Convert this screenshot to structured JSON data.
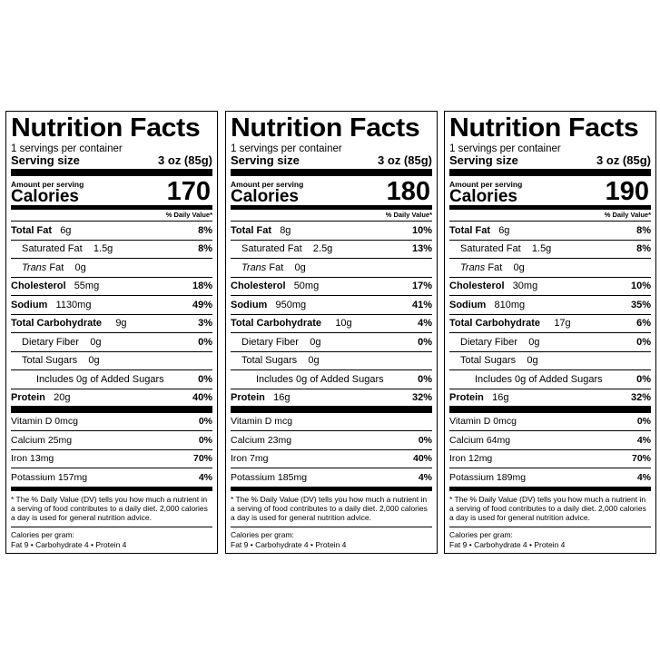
{
  "common": {
    "title": "Nutrition Facts",
    "servings": "1 servings per container",
    "serving_size_label": "Serving size",
    "serving_size_value": "3 oz (85g)",
    "amount_per_serving": "Amount per serving",
    "calories_label": "Calories",
    "dv_header": "% Daily Value*",
    "total_fat": "Total Fat",
    "saturated_fat": "Saturated Fat",
    "trans": "Trans",
    "fat": "Fat",
    "cholesterol": "Cholesterol",
    "sodium": "Sodium",
    "total_carb": "Total Carbohydrate",
    "dietary_fiber": "Dietary Fiber",
    "total_sugars": "Total Sugars",
    "added_sugars": "Includes 0g of Added Sugars",
    "protein": "Protein",
    "footnote": "* The % Daily Value (DV) tells you how much a nutrient in a serving of food contributes to a daily diet. 2,000 calories a day is used for general nutrition advice.",
    "cal_per_gram": "Calories per gram:",
    "cal_per_gram_values": "Fat 9  •  Carbohydrate 4  •  Protein 4"
  },
  "labels": [
    {
      "calories": "170",
      "total_fat_amt": "6g",
      "total_fat_dv": "8%",
      "sat_fat_amt": "1.5g",
      "sat_fat_dv": "8%",
      "trans_fat_amt": "0g",
      "chol_amt": "55mg",
      "chol_dv": "18%",
      "sodium_amt": "1130mg",
      "sodium_dv": "49%",
      "carb_amt": "9g",
      "carb_dv": "3%",
      "fiber_amt": "0g",
      "fiber_dv": "0%",
      "sugars_amt": "0g",
      "added_dv": "0%",
      "protein_amt": "20g",
      "protein_dv": "40%",
      "vitd": "Vitamin D 0mcg",
      "vitd_dv": "0%",
      "calcium": "Calcium 25mg",
      "calcium_dv": "0%",
      "iron": "Iron 13mg",
      "iron_dv": "70%",
      "potassium": "Potassium 157mg",
      "potassium_dv": "4%"
    },
    {
      "calories": "180",
      "total_fat_amt": "8g",
      "total_fat_dv": "10%",
      "sat_fat_amt": "2.5g",
      "sat_fat_dv": "13%",
      "trans_fat_amt": "0g",
      "chol_amt": "50mg",
      "chol_dv": "17%",
      "sodium_amt": "950mg",
      "sodium_dv": "41%",
      "carb_amt": "10g",
      "carb_dv": "4%",
      "fiber_amt": "0g",
      "fiber_dv": "0%",
      "sugars_amt": "0g",
      "added_dv": "0%",
      "protein_amt": "16g",
      "protein_dv": "32%",
      "vitd": "Vitamin D mcg",
      "vitd_dv": "",
      "calcium": "Calcium 23mg",
      "calcium_dv": "0%",
      "iron": "Iron 7mg",
      "iron_dv": "40%",
      "potassium": "Potassium 185mg",
      "potassium_dv": "4%"
    },
    {
      "calories": "190",
      "total_fat_amt": "6g",
      "total_fat_dv": "8%",
      "sat_fat_amt": "1.5g",
      "sat_fat_dv": "8%",
      "trans_fat_amt": "0g",
      "chol_amt": "30mg",
      "chol_dv": "10%",
      "sodium_amt": "810mg",
      "sodium_dv": "35%",
      "carb_amt": "17g",
      "carb_dv": "6%",
      "fiber_amt": "0g",
      "fiber_dv": "0%",
      "sugars_amt": "0g",
      "added_dv": "0%",
      "protein_amt": "16g",
      "protein_dv": "32%",
      "vitd": "Vitamin D 0mcg",
      "vitd_dv": "0%",
      "calcium": "Calcium 64mg",
      "calcium_dv": "4%",
      "iron": "Iron 12mg",
      "iron_dv": "70%",
      "potassium": "Potassium 189mg",
      "potassium_dv": "4%"
    }
  ]
}
